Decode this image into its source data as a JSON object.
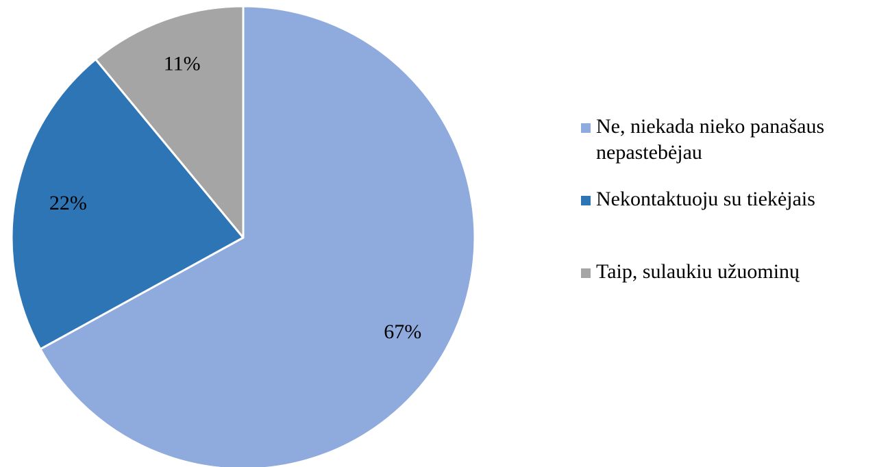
{
  "chart_data": {
    "type": "pie",
    "title": "",
    "slices": [
      {
        "label": "Ne, niekada nieko panašaus nepastebėjau",
        "value": 67,
        "value_label": "67%",
        "color": "#8faadc"
      },
      {
        "label": "Nekontaktuoju su tiekėjais",
        "value": 22,
        "value_label": "22%",
        "color": "#2e75b6"
      },
      {
        "label": "Taip, sulaukiu užuominų",
        "value": 11,
        "value_label": "11%",
        "color": "#a5a5a5"
      }
    ],
    "start_angle_deg": 0,
    "direction": "clockwise",
    "slice_border_color": "#ffffff",
    "legend_position": "right"
  }
}
